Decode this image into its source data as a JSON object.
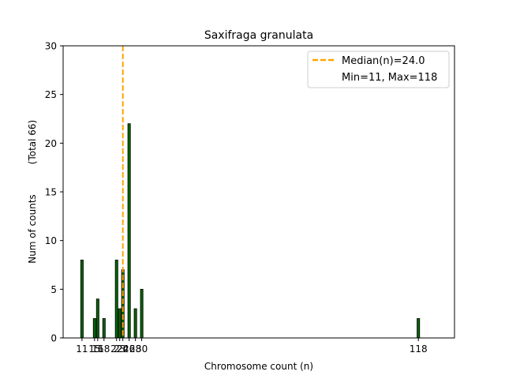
{
  "chart_data": {
    "type": "bar",
    "title": "Saxifraga granulata",
    "xlabel": "Chromosome count (n)",
    "ylabel": "Num of counts",
    "ylabel_secondary": "(Total 66)",
    "xlim": [
      5,
      129.5
    ],
    "ylim": [
      0,
      30
    ],
    "yticks": [
      0,
      5,
      10,
      15,
      20,
      25,
      30
    ],
    "xticks": [
      11,
      15,
      16,
      18,
      22,
      23,
      24,
      26,
      28,
      30,
      118
    ],
    "bar_color": "#006400",
    "bars": [
      {
        "x": 11,
        "value": 8
      },
      {
        "x": 15,
        "value": 2
      },
      {
        "x": 16,
        "value": 4
      },
      {
        "x": 18,
        "value": 2
      },
      {
        "x": 22,
        "value": 8
      },
      {
        "x": 23,
        "value": 3
      },
      {
        "x": 24,
        "value": 7
      },
      {
        "x": 26,
        "value": 22
      },
      {
        "x": 28,
        "value": 3
      },
      {
        "x": 30,
        "value": 5
      },
      {
        "x": 118,
        "value": 2
      }
    ],
    "median_line": {
      "x": 24.0,
      "color": "#FFA500"
    },
    "legend": {
      "placement": "top-right",
      "entries": [
        "Median(n)=24.0",
        "Min=11, Max=118"
      ]
    },
    "grid": false
  }
}
